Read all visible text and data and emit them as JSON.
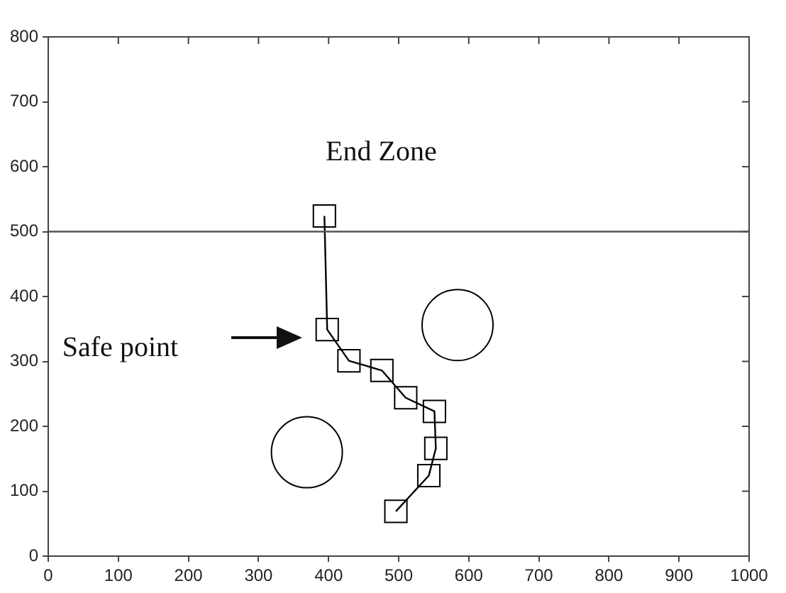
{
  "chart_data": {
    "type": "line",
    "xlim": [
      0,
      1000
    ],
    "xticks": [
      0,
      100,
      200,
      300,
      400,
      500,
      600,
      700,
      800,
      900,
      1000
    ],
    "ylim": [
      0,
      800
    ],
    "yticks": [
      0,
      100,
      200,
      300,
      400,
      500,
      600,
      700,
      800
    ],
    "grid": false,
    "legend": false,
    "series": [
      {
        "marker": "square",
        "color": "#000000",
        "x": [
          394,
          398,
          429,
          476,
          510,
          551,
          553,
          543,
          496
        ],
        "values": [
          524,
          349,
          301,
          286,
          244,
          223,
          166,
          124,
          69
        ]
      },
      {
        "type": "scatter",
        "marker": "circle",
        "color": "#000000",
        "x": [
          584,
          369
        ],
        "values": [
          356,
          160
        ]
      }
    ],
    "ref_lines": [
      {
        "axis": "y",
        "value": 500,
        "color": "#555555"
      }
    ],
    "annotations": [
      "End Zone",
      "Safe point"
    ]
  }
}
